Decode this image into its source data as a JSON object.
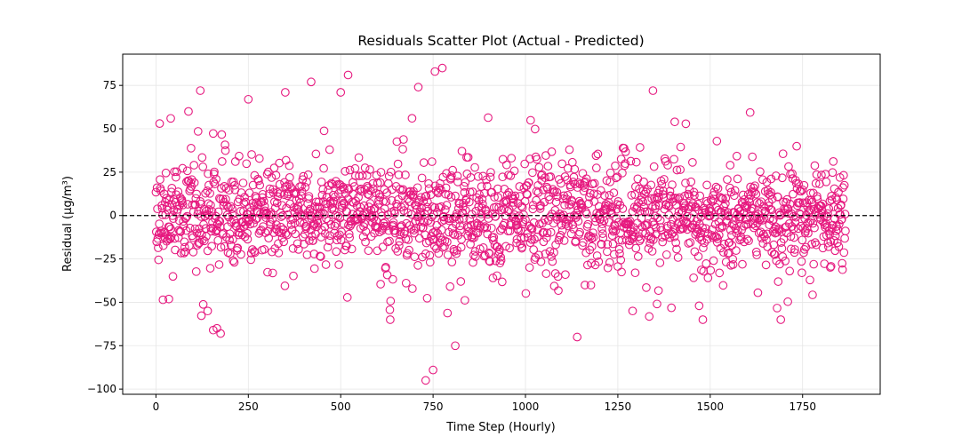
{
  "chart_data": {
    "type": "scatter",
    "title": "Residuals Scatter Plot (Actual - Predicted)",
    "xlabel": "Time Step (Hourly)",
    "ylabel": "Residual (µg/m³)",
    "xlim": [
      -90,
      1960
    ],
    "ylim": [
      -103,
      93
    ],
    "xticks": [
      0,
      250,
      500,
      750,
      1000,
      1250,
      1500,
      1750
    ],
    "yticks": [
      -100,
      -75,
      -50,
      -25,
      0,
      25,
      50,
      75
    ],
    "grid": true,
    "reference_line": {
      "y": 0,
      "style": "dashed",
      "color": "#000000"
    },
    "marker": {
      "shape": "circle",
      "fill": "none",
      "edge_color": "#e6197f"
    },
    "n_points": 1867,
    "highlight_points": [
      {
        "x": 10,
        "y": 53
      },
      {
        "x": 40,
        "y": 56
      },
      {
        "x": 120,
        "y": 72
      },
      {
        "x": 250,
        "y": 67
      },
      {
        "x": 350,
        "y": 71
      },
      {
        "x": 420,
        "y": 77
      },
      {
        "x": 500,
        "y": 71
      },
      {
        "x": 520,
        "y": 81
      },
      {
        "x": 710,
        "y": 74
      },
      {
        "x": 755,
        "y": 83
      },
      {
        "x": 775,
        "y": 85
      },
      {
        "x": 1345,
        "y": 72
      },
      {
        "x": 140,
        "y": -55
      },
      {
        "x": 155,
        "y": -66
      },
      {
        "x": 165,
        "y": -65
      },
      {
        "x": 175,
        "y": -68
      },
      {
        "x": 730,
        "y": -95
      },
      {
        "x": 750,
        "y": -89
      },
      {
        "x": 810,
        "y": -75
      },
      {
        "x": 1140,
        "y": -70
      },
      {
        "x": 1290,
        "y": -55
      },
      {
        "x": 1470,
        "y": -52
      }
    ]
  }
}
